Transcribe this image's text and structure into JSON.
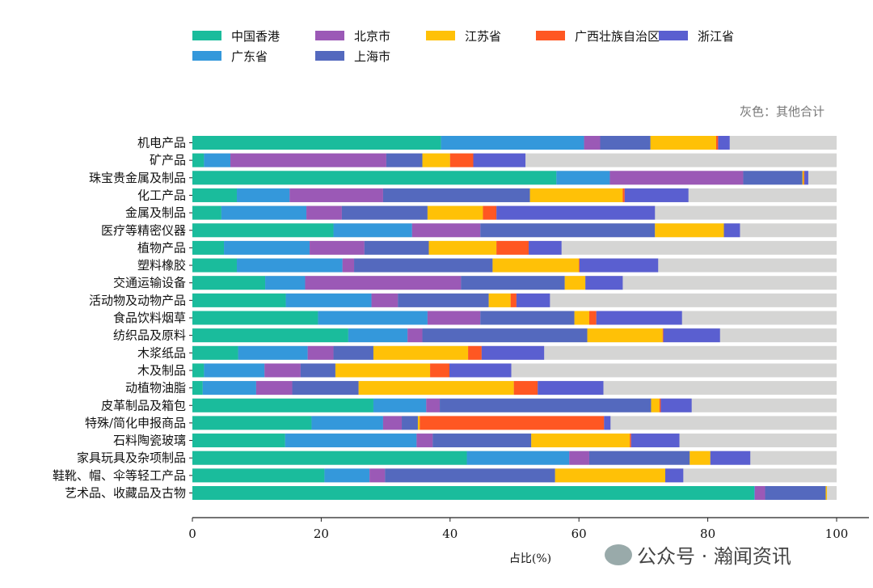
{
  "chart_data": {
    "type": "bar",
    "orientation": "horizontal",
    "stacked": true,
    "categories": [
      "机电产品",
      "矿产品",
      "珠宝贵金属及制品",
      "化工产品",
      "金属及制品",
      "医疗等精密仪器",
      "植物产品",
      "塑料橡胶",
      "交通运输设备",
      "活动物及动物产品",
      "食品饮料烟草",
      "纺织品及原料",
      "木浆纸品",
      "木及制品",
      "动植物油脂",
      "皮革制品及箱包",
      "特殊/简化申报商品",
      "石料陶瓷玻璃",
      "家具玩具及杂项制品",
      "鞋靴、帽、伞等轻工产品",
      "艺术品、收藏品及古物"
    ],
    "series": [
      {
        "name": "中国香港",
        "color": "#1abc9c",
        "values": [
          38.6,
          1.8,
          56.5,
          6.9,
          4.5,
          21.9,
          4.9,
          6.9,
          11.3,
          14.5,
          19.5,
          24.2,
          7.1,
          1.8,
          1.6,
          28.1,
          18.5,
          14.4,
          42.6,
          20.5,
          87.2
        ]
      },
      {
        "name": "广东省",
        "color": "#3498db",
        "values": [
          22.2,
          4.1,
          8.3,
          8.2,
          13.2,
          12.2,
          13.3,
          16.4,
          6.2,
          13.3,
          17.0,
          9.2,
          10.8,
          9.4,
          8.3,
          8.2,
          11.1,
          20.4,
          15.9,
          7.0,
          0.1
        ]
      },
      {
        "name": "北京市",
        "color": "#9b59b6",
        "values": [
          2.5,
          24.2,
          20.7,
          14.5,
          5.5,
          10.6,
          8.5,
          1.8,
          24.2,
          4.1,
          8.2,
          2.3,
          4.0,
          5.6,
          5.6,
          2.1,
          2.9,
          2.5,
          3.1,
          2.4,
          1.6
        ]
      },
      {
        "name": "上海市",
        "color": "#5469be",
        "values": [
          7.8,
          5.6,
          9.2,
          22.8,
          13.3,
          27.1,
          10.0,
          21.5,
          16.1,
          14.1,
          14.6,
          25.6,
          6.2,
          5.4,
          10.3,
          32.8,
          2.5,
          15.3,
          15.6,
          26.4,
          9.4
        ]
      },
      {
        "name": "江苏省",
        "color": "#ffc107",
        "values": [
          10.2,
          4.3,
          0.2,
          14.4,
          8.6,
          10.7,
          10.5,
          13.4,
          3.2,
          3.4,
          2.3,
          11.7,
          14.7,
          14.7,
          24.1,
          1.3,
          0.3,
          15.3,
          3.2,
          17.1,
          0.2
        ]
      },
      {
        "name": "广西壮族自治区",
        "color": "#ff5722",
        "values": [
          0.3,
          3.6,
          0.1,
          0.3,
          2.1,
          0,
          5.0,
          0.1,
          0,
          0.9,
          1.1,
          0.1,
          2.1,
          3.0,
          3.7,
          0.2,
          28.6,
          0.2,
          0,
          0,
          0
        ]
      },
      {
        "name": "浙江省",
        "color": "#5a5fd0",
        "values": [
          1.8,
          8.1,
          0.6,
          9.9,
          24.6,
          2.5,
          5.1,
          12.2,
          5.8,
          5.2,
          13.3,
          8.8,
          9.7,
          9.6,
          10.2,
          4.8,
          1.0,
          7.5,
          6.2,
          2.8,
          0
        ]
      }
    ],
    "other_color": "#d5d5d4",
    "other_note": "灰色：其他合计",
    "xlabel": "占比(%)",
    "xlim": [
      0,
      100
    ],
    "xticks": [
      "0",
      "20",
      "40",
      "60",
      "80",
      "100"
    ],
    "legend_placement": "top",
    "grid": false
  },
  "watermark": "公众号 · 瀚闻资讯"
}
